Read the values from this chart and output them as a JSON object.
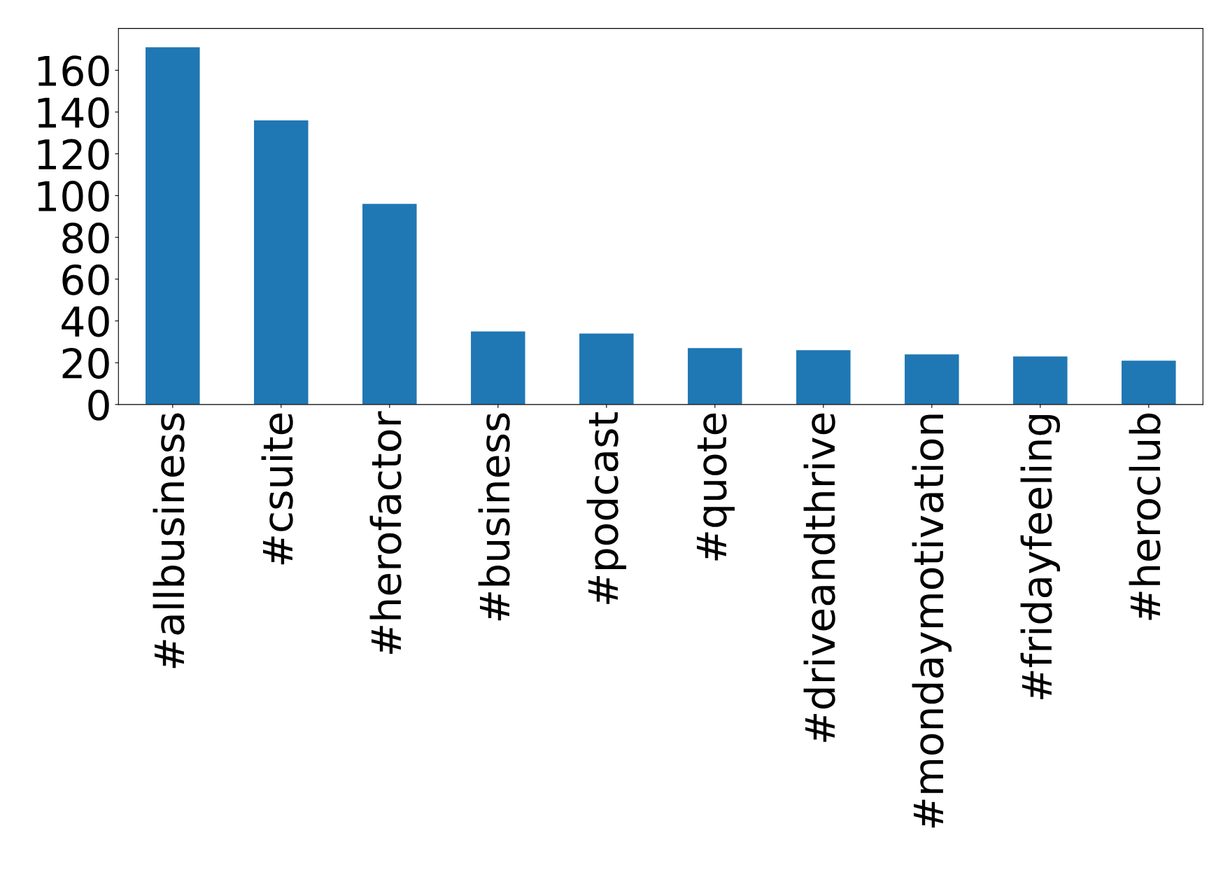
{
  "chart_data": {
    "type": "bar",
    "categories": [
      "#allbusiness",
      "#csuite",
      "#herofactor",
      "#business",
      "#podcast",
      "#quote",
      "#driveandthrive",
      "#mondaymotivation",
      "#fridayfeeling",
      "#heroclub"
    ],
    "values": [
      171,
      136,
      96,
      35,
      34,
      27,
      26,
      24,
      23,
      21
    ],
    "color": "#1f77b4",
    "ylim": [
      0,
      180
    ],
    "yticks": [
      0,
      20,
      40,
      60,
      80,
      100,
      120,
      140,
      160
    ],
    "grid": false,
    "legend": false
  }
}
